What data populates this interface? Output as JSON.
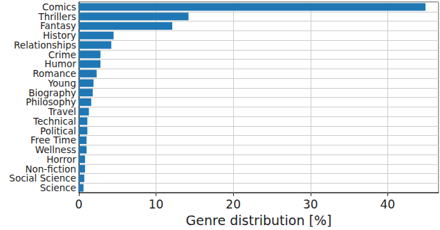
{
  "chart_data": {
    "type": "bar",
    "orientation": "horizontal",
    "x_label": "Genre distribution [%]",
    "categories": [
      "Comics",
      "Thrillers",
      "Fantasy",
      "History",
      "Relationships",
      "Crime",
      "Humor",
      "Romance",
      "Young",
      "Biography",
      "Philosophy",
      "Travel",
      "Technical",
      "Political",
      "Free Time",
      "Wellness",
      "Horror",
      "Non-fiction",
      "Social Science",
      "Science"
    ],
    "values": [
      44.9,
      14.2,
      12.1,
      4.5,
      4.2,
      2.8,
      2.8,
      2.3,
      1.9,
      1.8,
      1.6,
      1.3,
      1.1,
      1.1,
      1.0,
      1.0,
      0.8,
      0.8,
      0.7,
      0.6
    ],
    "color": "#1f77b4",
    "xlim": [
      0,
      46.6
    ],
    "xticks": [
      0,
      10,
      20,
      30,
      40
    ],
    "grid": true
  }
}
